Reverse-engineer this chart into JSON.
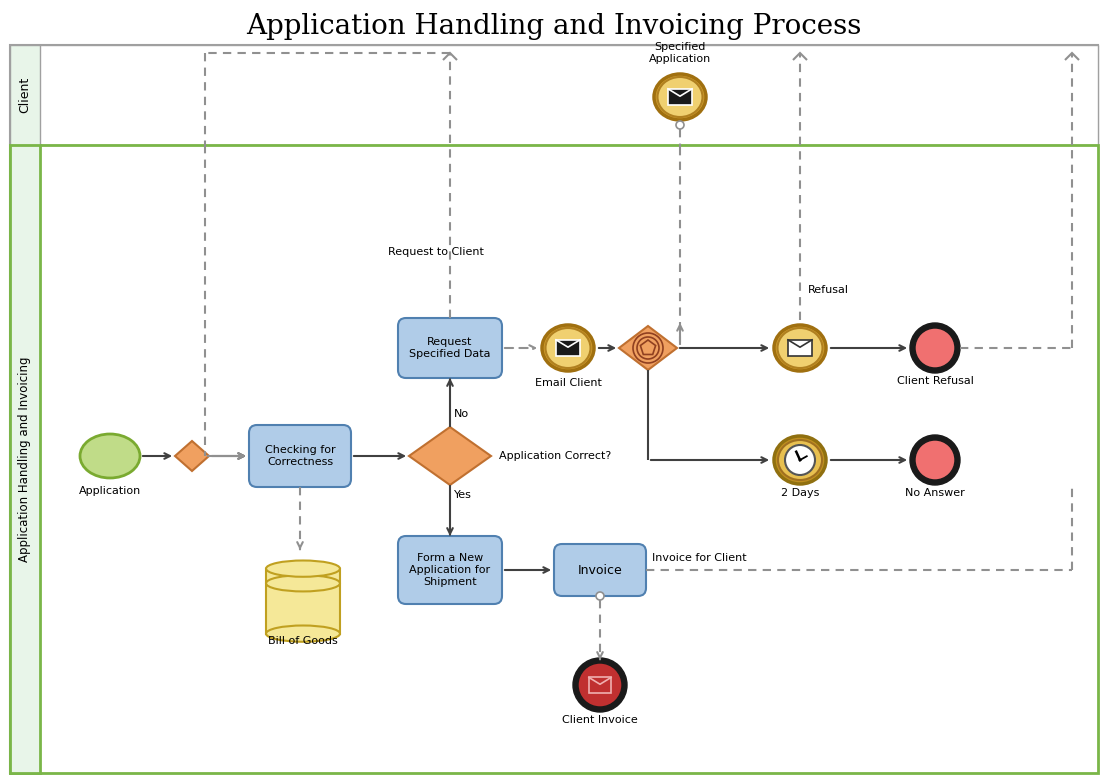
{
  "title": "Application Handling and Invoicing Process",
  "title_fontsize": 20,
  "bg_color": "#ffffff",
  "lane1_label": "Client",
  "lane2_label": "Application Handling and Invoicing",
  "lane1_color": "#e8f5e9",
  "lane2_color": "#e8f5e9",
  "lane_border_color": "#7ab648",
  "arrow_color": "#404040",
  "dashed_color": "#909090"
}
